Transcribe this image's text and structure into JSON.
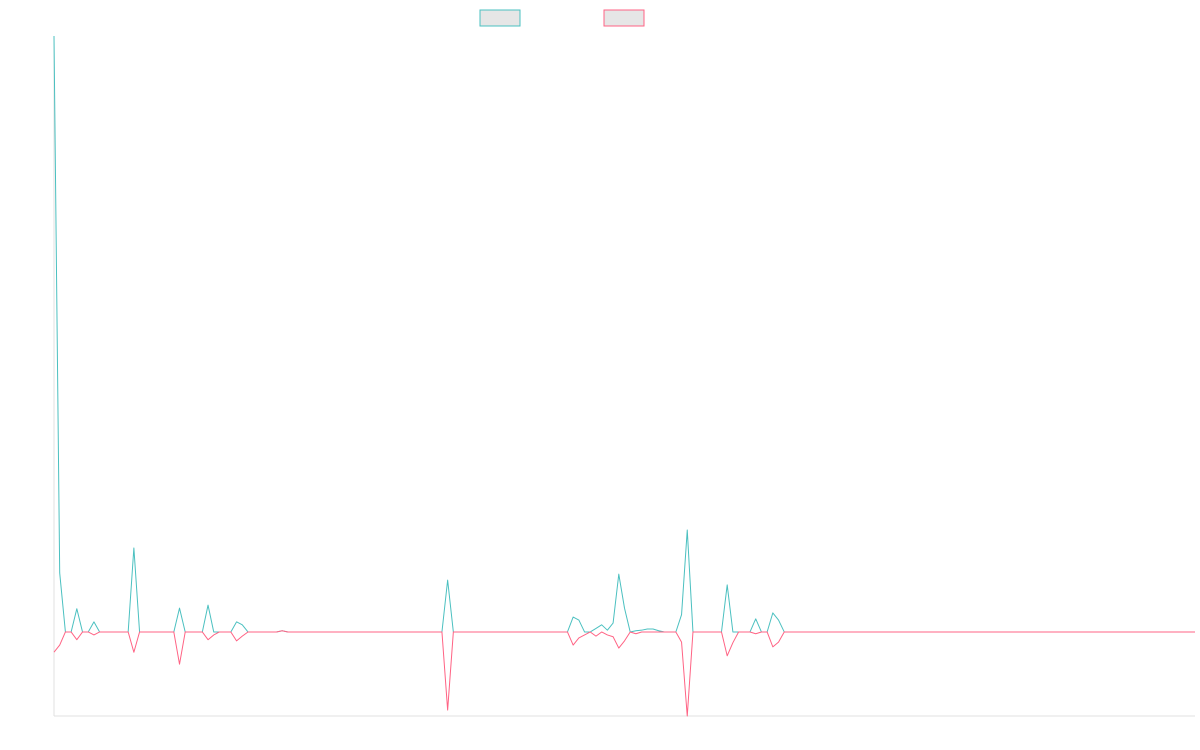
{
  "chart_data": {
    "type": "line",
    "ylim": [
      -14.1,
      100
    ],
    "series": [
      {
        "color": "#4bc0c0",
        "values": [
          100,
          9.9,
          0,
          0,
          3.9,
          0,
          0,
          1.7,
          0,
          0,
          0,
          0,
          0,
          0,
          14.1,
          0,
          0,
          0,
          0,
          0,
          0,
          0,
          4.0,
          0,
          0,
          0,
          0,
          4.5,
          0,
          0,
          0,
          0,
          1.7,
          1.2,
          0,
          0,
          0,
          0,
          0,
          0,
          0.2,
          0,
          0,
          0,
          0,
          0,
          0,
          0,
          0,
          0,
          0,
          0,
          0,
          0,
          0,
          0,
          0,
          0,
          0,
          0,
          0,
          0,
          0,
          0,
          0,
          0,
          0,
          0,
          0,
          8.7,
          0,
          0,
          0,
          0,
          0,
          0,
          0,
          0,
          0,
          0,
          0,
          0,
          0,
          0,
          0,
          0,
          0,
          0,
          0,
          0,
          0,
          2.5,
          2.0,
          0,
          0,
          0.6,
          1.2,
          0.3,
          1.5,
          9.7,
          4.0,
          0,
          0.2,
          0.3,
          0.5,
          0.5,
          0.2,
          0,
          0,
          0,
          2.9,
          17.1,
          0,
          0,
          0,
          0,
          0,
          0,
          7.9,
          0,
          0,
          0,
          0,
          2.2,
          0,
          0,
          3.2,
          2.0,
          0,
          0,
          0,
          0,
          0,
          0,
          0,
          0,
          0,
          0,
          0,
          0,
          0,
          0,
          0,
          0,
          0,
          0,
          0,
          0,
          0,
          0,
          0,
          0,
          0,
          0,
          0,
          0,
          0,
          0,
          0,
          0,
          0,
          0,
          0,
          0,
          0,
          0,
          0,
          0,
          0,
          0,
          0,
          0,
          0,
          0,
          0,
          0,
          0,
          0,
          0,
          0,
          0,
          0,
          0,
          0,
          0,
          0,
          0,
          0,
          0,
          0,
          0,
          0,
          0,
          0,
          0,
          0,
          0,
          0,
          0,
          0,
          0
        ]
      },
      {
        "color": "#ff6384",
        "values": [
          -3.4,
          -2.2,
          0,
          0,
          -1.3,
          0,
          0,
          -0.5,
          0,
          0,
          0,
          0,
          0,
          0,
          -3.4,
          0,
          0,
          0,
          0,
          0,
          0,
          0,
          -5.4,
          0,
          0,
          0,
          0,
          -1.3,
          -0.5,
          0,
          0,
          0,
          -1.5,
          -0.7,
          0,
          0,
          0,
          0,
          0,
          0,
          0.2,
          0,
          0,
          0,
          0,
          0,
          0,
          0,
          0,
          0,
          0,
          0,
          0,
          0,
          0,
          0,
          0,
          0,
          0,
          0,
          0,
          0,
          0,
          0,
          0,
          0,
          0,
          0,
          0,
          -13.1,
          0,
          0,
          0,
          0,
          0,
          0,
          0,
          0,
          0,
          0,
          0,
          0,
          0,
          0,
          0,
          0,
          0,
          0,
          0,
          0,
          0,
          -2.2,
          -1.0,
          -0.5,
          0,
          -0.7,
          0,
          -0.5,
          -0.8,
          -2.7,
          -1.5,
          0,
          -0.3,
          0,
          0,
          0,
          0,
          0,
          0,
          0,
          -1.7,
          -14.1,
          0,
          0,
          0,
          0,
          0,
          0,
          -4.0,
          -1.8,
          0,
          0,
          0,
          -0.3,
          0,
          0,
          -2.5,
          -1.7,
          0,
          0,
          0,
          0,
          0,
          0,
          0,
          0,
          0,
          0,
          0,
          0,
          0,
          0,
          0,
          0,
          0,
          0,
          0,
          0,
          0,
          0,
          0,
          0,
          0,
          0,
          0,
          0,
          0,
          0,
          0,
          0,
          0,
          0,
          0,
          0,
          0,
          0,
          0,
          0,
          0,
          0,
          0,
          0,
          0,
          0,
          0,
          0,
          0,
          0,
          0,
          0,
          0,
          0,
          0,
          0,
          0,
          0,
          0,
          0,
          0,
          0,
          0,
          0,
          0,
          0,
          0,
          0,
          0,
          0,
          0,
          0,
          0
        ]
      }
    ]
  }
}
